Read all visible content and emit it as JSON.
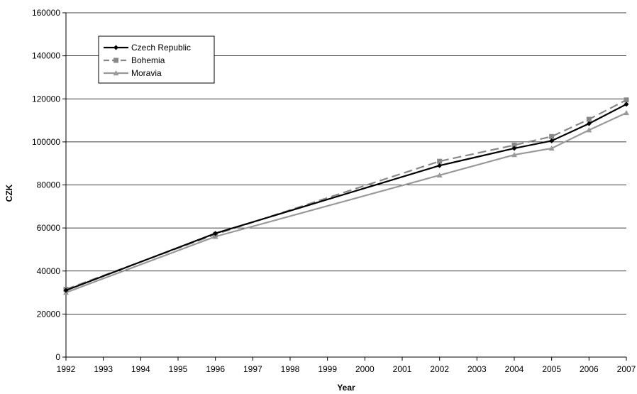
{
  "chart_data": {
    "type": "line",
    "xlabel": "Year",
    "ylabel": "CZK",
    "x_ticks": [
      "1992",
      "1993",
      "1994",
      "1995",
      "1996",
      "1997",
      "1998",
      "1999",
      "2000",
      "2001",
      "2002",
      "2003",
      "2004",
      "2005",
      "2006",
      "2007"
    ],
    "ylim": [
      0,
      160000
    ],
    "y_ticks": [
      "0",
      "20000",
      "40000",
      "60000",
      "80000",
      "100000",
      "120000",
      "140000",
      "160000"
    ],
    "grid": "horizontal",
    "legend_position": "top-left",
    "series": [
      {
        "name": "Czech Republic",
        "marker": "diamond",
        "dash": "solid",
        "color": "#000000",
        "points": [
          {
            "x": "1992",
            "y": 31000
          },
          {
            "x": "1996",
            "y": 57500
          },
          {
            "x": "2002",
            "y": 89000
          },
          {
            "x": "2004",
            "y": 97000
          },
          {
            "x": "2005",
            "y": 100500
          },
          {
            "x": "2006",
            "y": 108500
          },
          {
            "x": "2007",
            "y": 117500
          }
        ]
      },
      {
        "name": "Bohemia",
        "marker": "square",
        "dash": "dashed",
        "color": "#888888",
        "points": [
          {
            "x": "1992",
            "y": 31500
          },
          {
            "x": "1996",
            "y": 57000
          },
          {
            "x": "2002",
            "y": 91000
          },
          {
            "x": "2004",
            "y": 98500
          },
          {
            "x": "2005",
            "y": 102500
          },
          {
            "x": "2006",
            "y": 110500
          },
          {
            "x": "2007",
            "y": 119500
          }
        ]
      },
      {
        "name": "Moravia",
        "marker": "triangle",
        "dash": "solid",
        "color": "#999999",
        "points": [
          {
            "x": "1992",
            "y": 30000
          },
          {
            "x": "1996",
            "y": 56000
          },
          {
            "x": "2002",
            "y": 84500
          },
          {
            "x": "2004",
            "y": 94000
          },
          {
            "x": "2005",
            "y": 97000
          },
          {
            "x": "2006",
            "y": 105500
          },
          {
            "x": "2007",
            "y": 113500
          }
        ]
      }
    ]
  }
}
